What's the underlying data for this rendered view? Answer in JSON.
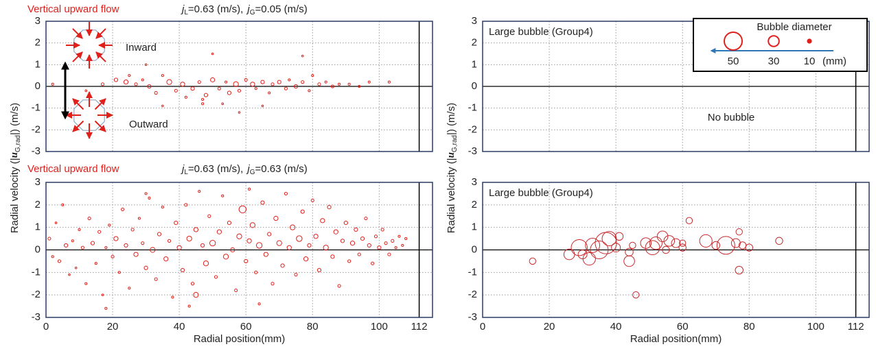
{
  "y_axis_label": {
    "prefix": "Radial velocity (|",
    "var": "u",
    "sub": "G,rad",
    "suffix": "|) (m/s)"
  },
  "chart_data": [
    {
      "type": "scatter",
      "flow_label": "Vertical upward flow",
      "condition": [
        [
          "j",
          "L",
          "=0.63 (m/s),"
        ],
        [
          "j",
          "G",
          "=0.05 (m/s)"
        ]
      ],
      "inset": {
        "inward": "Inward",
        "outward": "Outward"
      },
      "xlim": [
        0,
        116
      ],
      "xticks": [
        0,
        20,
        40,
        60,
        80,
        100,
        112
      ],
      "xtick_labels": false,
      "ylim": [
        -3,
        3
      ],
      "yticks": [
        -3,
        -2,
        -1,
        0,
        1,
        2,
        3
      ],
      "grid": true,
      "color": "#e0201b",
      "x": [
        2,
        12,
        17,
        21,
        24,
        27,
        29,
        31,
        33,
        35,
        37,
        39,
        41,
        42,
        44,
        46,
        47,
        48,
        50,
        52,
        54,
        55,
        57,
        58,
        60,
        62,
        63,
        65,
        67,
        68,
        70,
        72,
        73,
        75,
        77,
        79,
        80,
        82,
        84,
        86,
        88,
        91,
        94,
        97,
        103,
        50,
        58,
        77,
        25,
        35,
        47,
        53,
        65,
        30
      ],
      "values": [
        0.1,
        -0.2,
        0.1,
        0.3,
        0.2,
        0.1,
        0.3,
        0.0,
        -0.3,
        0.5,
        0.2,
        -0.2,
        0.1,
        -0.5,
        -0.1,
        0.2,
        -0.6,
        -0.4,
        0.3,
        -0.1,
        0.2,
        -0.3,
        0.1,
        -0.2,
        0.3,
        0.1,
        -0.1,
        0.2,
        -0.3,
        0.1,
        0.2,
        -0.1,
        0.3,
        0.0,
        0.2,
        -0.2,
        0.5,
        0.1,
        0.2,
        0.0,
        0.1,
        0.1,
        0.0,
        0.2,
        0.2,
        1.5,
        -1.2,
        1.4,
        0.5,
        -0.9,
        -0.8,
        -0.8,
        -0.9,
        1.0
      ],
      "sizes": [
        6,
        5,
        8,
        10,
        12,
        8,
        6,
        10,
        8,
        6,
        14,
        8,
        12,
        6,
        10,
        8,
        6,
        10,
        12,
        8,
        6,
        10,
        14,
        8,
        8,
        12,
        6,
        10,
        6,
        8,
        10,
        8,
        6,
        10,
        8,
        6,
        6,
        8,
        6,
        8,
        6,
        6,
        6,
        6,
        6,
        4,
        4,
        4,
        6,
        5,
        6,
        5,
        5,
        4
      ]
    },
    {
      "type": "scatter",
      "flow_label": "Vertical upward flow",
      "condition": [
        [
          "j",
          "L",
          "=0.63 (m/s),"
        ],
        [
          "j",
          "G",
          "=0.63 (m/s)"
        ]
      ],
      "xlim": [
        0,
        116
      ],
      "xticks": [
        0,
        20,
        40,
        60,
        80,
        100,
        112
      ],
      "xtick_labels": true,
      "xlabel": "Radial position(mm)",
      "ylim": [
        -3,
        3
      ],
      "yticks": [
        -3,
        -2,
        -1,
        0,
        1,
        2,
        3
      ],
      "grid": true,
      "color": "#e0201b",
      "x": [
        1,
        2,
        3,
        4,
        5,
        6,
        7,
        8,
        9,
        10,
        11,
        12,
        13,
        14,
        15,
        16,
        17,
        18,
        18,
        19,
        20,
        21,
        22,
        23,
        24,
        25,
        26,
        27,
        28,
        29,
        30,
        31,
        32,
        33,
        34,
        35,
        36,
        37,
        38,
        39,
        40,
        41,
        42,
        43,
        44,
        45,
        45,
        46,
        47,
        48,
        49,
        50,
        51,
        52,
        53,
        54,
        55,
        56,
        57,
        58,
        59,
        60,
        61,
        62,
        63,
        64,
        65,
        66,
        67,
        68,
        69,
        70,
        71,
        72,
        73,
        74,
        75,
        76,
        77,
        78,
        79,
        80,
        81,
        82,
        83,
        84,
        85,
        86,
        87,
        88,
        89,
        90,
        91,
        92,
        93,
        94,
        95,
        96,
        97,
        98,
        99,
        100,
        101,
        102,
        103,
        104,
        105,
        106,
        107,
        108,
        61,
        30,
        64,
        43
      ],
      "values": [
        0.5,
        -0.3,
        1.2,
        -0.5,
        2.0,
        0.2,
        -1.1,
        0.4,
        -0.8,
        0.9,
        0.1,
        -1.5,
        1.4,
        0.3,
        -0.6,
        0.8,
        -2.0,
        0.1,
        -2.6,
        1.1,
        -0.3,
        0.5,
        -1.0,
        1.8,
        0.2,
        -1.7,
        0.9,
        -0.2,
        1.4,
        0.3,
        -0.8,
        2.3,
        0.0,
        -1.3,
        0.7,
        1.9,
        -0.4,
        0.4,
        -2.1,
        1.2,
        0.1,
        -0.9,
        2.0,
        0.5,
        -1.5,
        0.9,
        -2.0,
        2.6,
        0.2,
        -0.6,
        1.5,
        0.3,
        -1.2,
        0.8,
        2.4,
        -0.3,
        1.2,
        0.0,
        -1.8,
        0.6,
        1.8,
        -0.5,
        0.4,
        1.1,
        -1.0,
        0.2,
        2.1,
        -0.2,
        0.7,
        -1.5,
        1.4,
        0.3,
        -0.7,
        2.5,
        0.1,
        1.0,
        -1.1,
        0.5,
        1.7,
        -0.4,
        0.2,
        2.2,
        0.6,
        -0.9,
        1.3,
        0.1,
        1.9,
        -0.3,
        0.8,
        -1.6,
        0.4,
        1.2,
        -0.5,
        0.3,
        0.9,
        -0.2,
        0.5,
        1.4,
        0.2,
        -0.6,
        0.6,
        0.1,
        0.9,
        0.3,
        -0.2,
        0.4,
        0.1,
        0.6,
        0.2,
        0.5,
        2.7,
        2.5,
        -2.4,
        -2.5
      ],
      "sizes": [
        8,
        6,
        5,
        8,
        6,
        10,
        5,
        6,
        5,
        6,
        8,
        6,
        8,
        10,
        6,
        8,
        5,
        6,
        6,
        6,
        8,
        12,
        6,
        8,
        10,
        6,
        8,
        12,
        6,
        8,
        10,
        6,
        14,
        8,
        10,
        6,
        12,
        8,
        6,
        10,
        12,
        10,
        8,
        14,
        8,
        12,
        14,
        6,
        10,
        14,
        8,
        16,
        8,
        12,
        6,
        14,
        10,
        12,
        8,
        14,
        20,
        10,
        12,
        14,
        8,
        16,
        10,
        12,
        10,
        8,
        12,
        14,
        10,
        8,
        12,
        14,
        8,
        16,
        10,
        12,
        10,
        8,
        12,
        10,
        12,
        14,
        10,
        10,
        12,
        8,
        10,
        10,
        8,
        12,
        10,
        8,
        10,
        8,
        10,
        8,
        8,
        10,
        8,
        8,
        8,
        8,
        6,
        6,
        6,
        6,
        6,
        6,
        6,
        6
      ]
    },
    {
      "type": "scatter",
      "title": "Large bubble  (Group4)",
      "annotation": "No bubble",
      "legend": {
        "title": "Bubble diameter",
        "sizes": [
          50,
          30,
          10
        ],
        "unit": "(mm)"
      },
      "xlim": [
        0,
        116
      ],
      "xticks": [
        0,
        20,
        40,
        60,
        80,
        100,
        112
      ],
      "xtick_labels": false,
      "ylim": [
        -3,
        3
      ],
      "yticks": [
        -3,
        -2,
        -1,
        0,
        1,
        2,
        3
      ],
      "grid": true,
      "color": "#e0201b",
      "x": [],
      "values": [],
      "sizes": []
    },
    {
      "type": "scatter",
      "title": "Large bubble  (Group4)",
      "xlim": [
        0,
        116
      ],
      "xticks": [
        0,
        20,
        40,
        60,
        80,
        100,
        112
      ],
      "xtick_labels": true,
      "xlabel": "Radial position(mm)",
      "ylim": [
        -3,
        3
      ],
      "yticks": [
        -3,
        -2,
        -1,
        0,
        1,
        2,
        3
      ],
      "grid": true,
      "color": "#c8282a",
      "x": [
        15,
        26,
        29,
        30,
        32,
        33,
        35,
        37,
        38,
        40,
        41,
        44,
        44,
        45,
        46,
        49,
        51,
        52,
        54,
        55,
        56,
        58,
        60,
        60,
        62,
        67,
        70,
        73,
        76,
        77,
        77,
        78,
        80,
        89
      ],
      "values": [
        -0.5,
        -0.2,
        0.1,
        -0.2,
        -0.4,
        0.2,
        0.0,
        0.3,
        0.5,
        0.1,
        0.6,
        -0.5,
        -0.1,
        0.2,
        -2.0,
        0.3,
        0.1,
        0.3,
        0.6,
        0.0,
        0.4,
        0.3,
        0.1,
        0.3,
        1.3,
        0.4,
        0.2,
        0.2,
        0.3,
        0.8,
        -0.9,
        0.2,
        0.1,
        0.4
      ],
      "sizes": [
        18,
        30,
        45,
        25,
        35,
        40,
        50,
        60,
        40,
        25,
        22,
        30,
        22,
        18,
        18,
        30,
        40,
        35,
        30,
        20,
        30,
        25,
        20,
        18,
        18,
        35,
        22,
        50,
        25,
        18,
        22,
        20,
        20,
        20
      ]
    }
  ]
}
